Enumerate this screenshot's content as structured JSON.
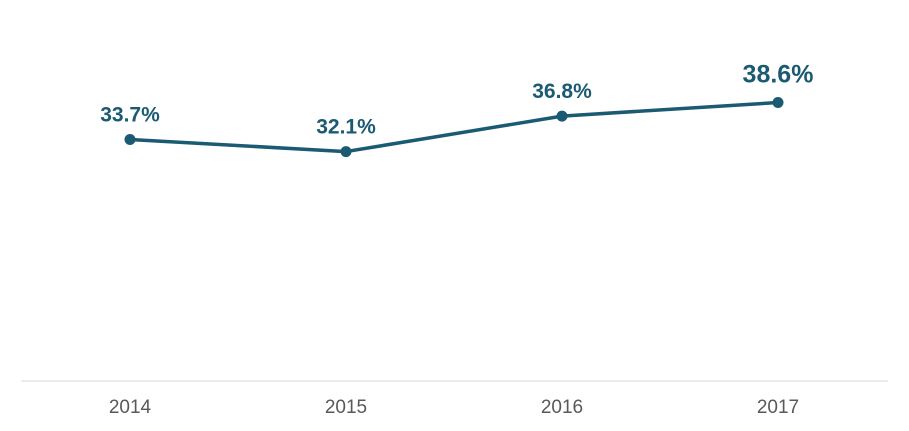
{
  "chart_data": {
    "type": "line",
    "categories": [
      "2014",
      "2015",
      "2016",
      "2017"
    ],
    "series": [
      {
        "values": [
          33.7,
          32.1,
          36.8,
          38.6
        ],
        "labels": [
          "33.7%",
          "32.1%",
          "36.8%",
          "38.6%"
        ]
      }
    ],
    "title": "",
    "xlabel": "",
    "ylabel": "",
    "grid": false,
    "legend": "none",
    "colors": {
      "line": "#1b5a73",
      "labels": "#1b5a73",
      "axis": "#d9d9d9",
      "ticks": "#595959"
    }
  }
}
